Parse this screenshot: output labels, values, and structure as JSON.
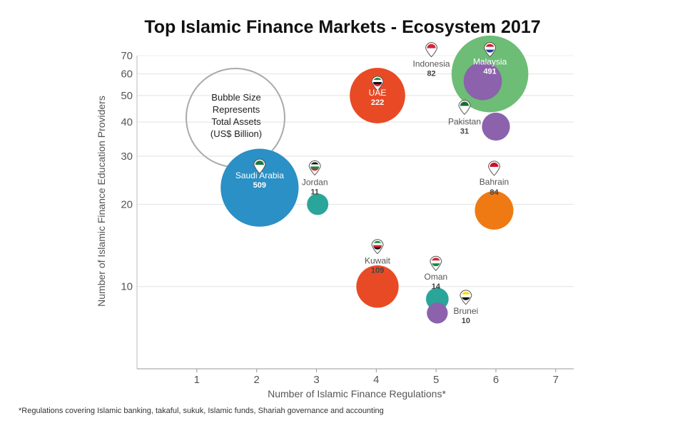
{
  "chart_data": {
    "type": "scatter",
    "title": "Top Islamic Finance Markets - Ecosystem 2017",
    "xlabel": "Number of Islamic Finance Regulations*",
    "ylabel": "Number of Islamic Finance Education Providers",
    "xlim": [
      0,
      7.3
    ],
    "ylim": [
      5,
      70
    ],
    "xticks": [
      1,
      2,
      3,
      4,
      5,
      6,
      7
    ],
    "yticks": [
      10,
      20,
      30,
      40,
      50,
      60,
      70
    ],
    "y_scale": "log",
    "grid": "horizontal",
    "legend": {
      "lines": [
        "Bubble Size",
        "Represents",
        "Total Assets",
        "(US$ Billion)"
      ],
      "placement": "top-left"
    },
    "footnote": "*Regulations covering Islamic banking, takaful, sukuk, Islamic funds, Shariah governance and accounting",
    "points": [
      {
        "name": "Malaysia",
        "value": "491",
        "x": 5.9,
        "y": 60,
        "size": 491,
        "color": "#6dbd76",
        "text_color": "#ffffff",
        "labels_inside": true
      },
      {
        "name": "Saudi Arabia",
        "value": "509",
        "x": 2.05,
        "y": 23,
        "size": 509,
        "color": "#2a90c5",
        "text_color": "#ffffff",
        "labels_inside": true
      },
      {
        "name": "UAE",
        "value": "222",
        "x": 4.02,
        "y": 50,
        "size": 222,
        "color": "#e84a26",
        "text_color": "#ffffff",
        "labels_inside": true
      },
      {
        "name": "Indonesia",
        "value": "82",
        "x": 5.78,
        "y": 56.5,
        "size": 82,
        "color": "#8b62ab",
        "text_color": "#555555",
        "labels_inside": false
      },
      {
        "name": "Pakistan",
        "value": "31",
        "x": 6.0,
        "y": 38.5,
        "size": 31,
        "color": "#8b62ab",
        "text_color": "#555555",
        "labels_inside": false
      },
      {
        "name": "Bahrain",
        "value": "84",
        "x": 5.97,
        "y": 19,
        "size": 84,
        "color": "#ef7a13",
        "text_color": "#555555",
        "labels_inside": false
      },
      {
        "name": "Jordan",
        "value": "11",
        "x": 3.02,
        "y": 20,
        "size": 11,
        "color": "#2aa59a",
        "text_color": "#555555",
        "labels_inside": false
      },
      {
        "name": "Kuwait",
        "value": "109",
        "x": 4.02,
        "y": 10,
        "size": 109,
        "color": "#e84a26",
        "text_color": "#555555",
        "labels_inside": false
      },
      {
        "name": "Oman",
        "value": "14",
        "x": 5.02,
        "y": 9,
        "size": 14,
        "color": "#2aa59a",
        "text_color": "#555555",
        "labels_inside": false
      },
      {
        "name": "Brunei",
        "value": "10",
        "x": 5.02,
        "y": 8,
        "size": 10,
        "color": "#8b62ab",
        "text_color": "#555555",
        "labels_inside": false
      }
    ],
    "flag_markers": [
      {
        "country": "Malaysia",
        "icon": "malaysia-flag-icon",
        "colors": [
          "#cc2229",
          "#ffffff",
          "#1b3f93"
        ]
      },
      {
        "country": "Indonesia",
        "icon": "indonesia-flag-icon",
        "colors": [
          "#d62631",
          "#ffffff"
        ]
      },
      {
        "country": "UAE",
        "icon": "uae-flag-icon",
        "colors": [
          "#0a8a3e",
          "#ffffff",
          "#111111",
          "#d62631"
        ]
      },
      {
        "country": "Pakistan",
        "icon": "pakistan-flag-icon",
        "colors": [
          "#1f6b36",
          "#ffffff"
        ]
      },
      {
        "country": "Saudi Arabia",
        "icon": "saudi-arabia-flag-icon",
        "colors": [
          "#1f7a3a",
          "#ffffff"
        ]
      },
      {
        "country": "Jordan",
        "icon": "jordan-flag-icon",
        "colors": [
          "#111111",
          "#ffffff",
          "#128a3e",
          "#d62631"
        ]
      },
      {
        "country": "Bahrain",
        "icon": "bahrain-flag-icon",
        "colors": [
          "#ce1126",
          "#ffffff"
        ]
      },
      {
        "country": "Kuwait",
        "icon": "kuwait-flag-icon",
        "colors": [
          "#128a3e",
          "#ffffff",
          "#d62631",
          "#111111"
        ]
      },
      {
        "country": "Oman",
        "icon": "oman-flag-icon",
        "colors": [
          "#d62631",
          "#ffffff",
          "#128a3e"
        ]
      },
      {
        "country": "Brunei",
        "icon": "brunei-flag-icon",
        "colors": [
          "#f7e017",
          "#ffffff",
          "#111111"
        ]
      }
    ]
  }
}
